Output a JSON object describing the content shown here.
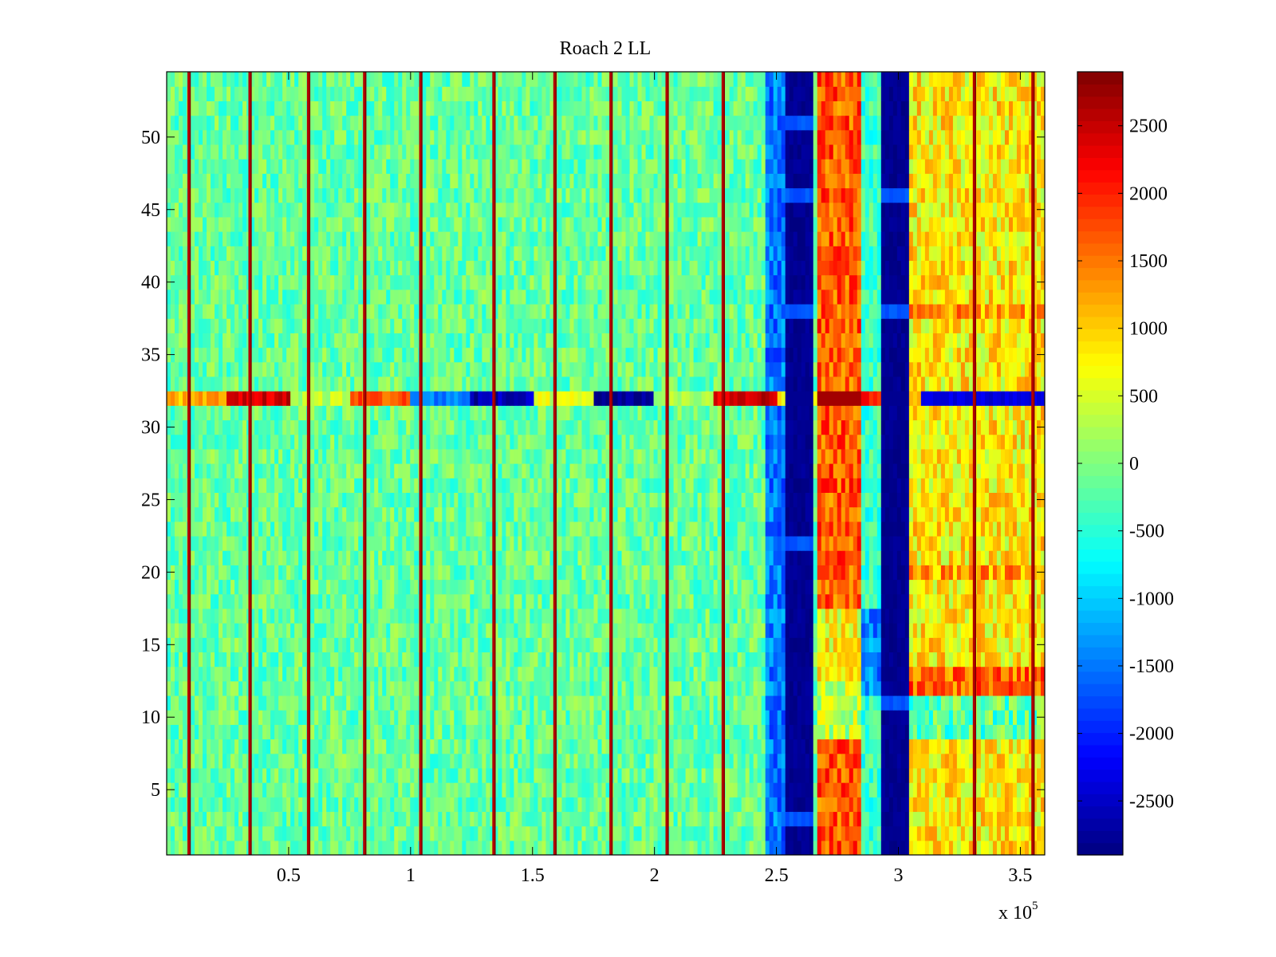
{
  "chart_data": {
    "type": "heatmap",
    "title": "Roach 2 LL",
    "xlabel": "",
    "ylabel": "",
    "x_range": [
      0,
      360000
    ],
    "y_range": [
      0.5,
      54.5
    ],
    "x_ticks": [
      50000,
      100000,
      150000,
      200000,
      250000,
      300000,
      350000
    ],
    "x_tick_labels": [
      "0.5",
      "1",
      "1.5",
      "2",
      "2.5",
      "3",
      "3.5"
    ],
    "x_exponent_label": {
      "base": "x 10",
      "exponent": "5"
    },
    "y_ticks": [
      5,
      10,
      15,
      20,
      25,
      30,
      35,
      40,
      45,
      50
    ],
    "y_tick_labels": [
      "5",
      "10",
      "15",
      "20",
      "25",
      "30",
      "35",
      "40",
      "45",
      "50"
    ],
    "rows": 54,
    "colormap": "jet",
    "clim": [
      -2900,
      2900
    ],
    "colorbar_ticks": [
      2500,
      2000,
      1500,
      1000,
      500,
      0,
      -500,
      -1000,
      -1500,
      -2000,
      -2500
    ],
    "colorbar_tick_labels": [
      "2500",
      "2000",
      "1500",
      "1000",
      "500",
      "0",
      "-500",
      "-1000",
      "-1500",
      "-2000",
      "-2500"
    ],
    "background_mean": -150,
    "vertical_spikes_x": [
      9000,
      34000,
      58000,
      81000,
      104000,
      134000,
      159000,
      182000,
      205000,
      228000,
      331000,
      355000
    ],
    "features": [
      {
        "name": "low band A",
        "x_range": [
          253000,
          265000
        ],
        "value": -2800
      },
      {
        "name": "high band",
        "x_range": [
          267000,
          285000
        ],
        "value": 1700
      },
      {
        "name": "low band B",
        "x_range": [
          293000,
          305000
        ],
        "value": -2800
      },
      {
        "name": "elevated region",
        "x_range": [
          307000,
          360000
        ],
        "value": 800
      },
      {
        "name": "anomalous row",
        "row": 32,
        "value_range": [
          -2800,
          2800
        ]
      }
    ]
  }
}
